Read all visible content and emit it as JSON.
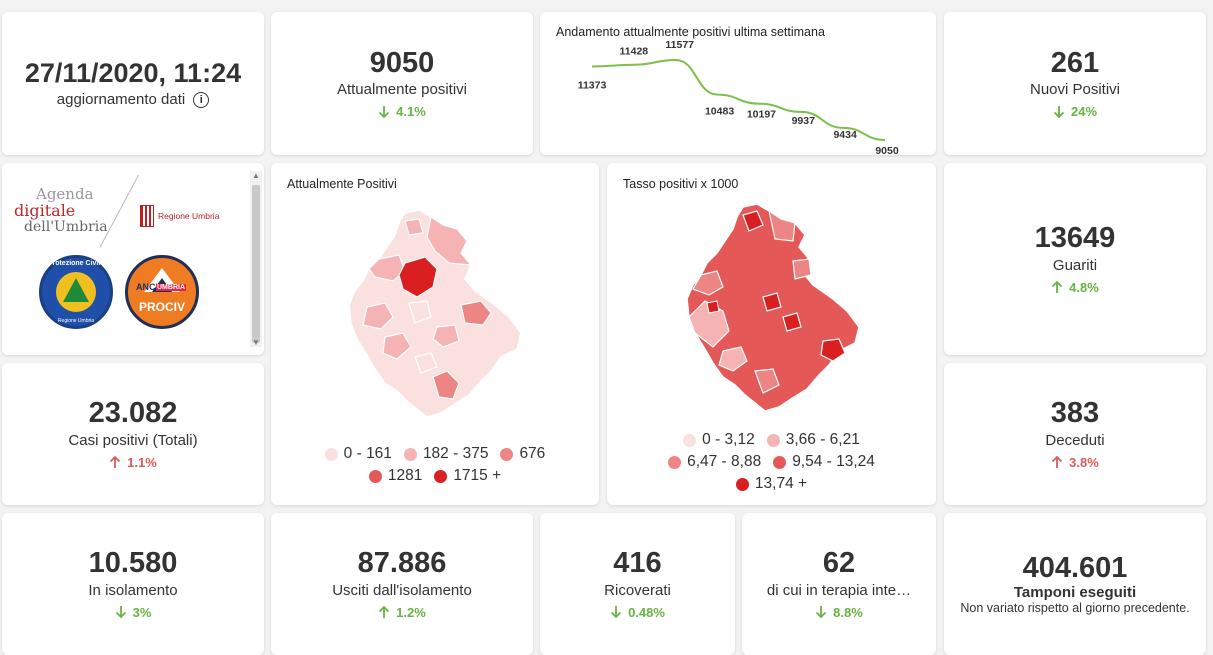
{
  "datetime": {
    "value": "27/11/2020, 11:24",
    "label": "aggiornamento dati",
    "icon": "info-icon"
  },
  "attualmente_positivi": {
    "value": "9050",
    "label": "Attualmente positivi",
    "trend": "4.1%",
    "direction": "down"
  },
  "trend_chart": {
    "title": "Andamento attualmente positivi ultima settimana",
    "chart_data": {
      "type": "line",
      "title": "Andamento attualmente positivi ultima settimana",
      "values": [
        11373,
        11428,
        11577,
        10483,
        10197,
        9937,
        9434,
        9050
      ],
      "labels": [
        "11373",
        "11428",
        "11577",
        "10483",
        "10197",
        "9937",
        "9434",
        "9050"
      ],
      "color": "#7cbf4a"
    }
  },
  "nuovi_positivi": {
    "value": "261",
    "label": "Nuovi Positivi",
    "trend": "24%",
    "direction": "down"
  },
  "logos": {
    "agenda_line1": "Agenda",
    "agenda_line2": "digitale",
    "agenda_line3": "dell'Umbria",
    "regione": "Regione Umbria",
    "protezione": "Protezione Civile",
    "protezione_sub": "Regione Umbria",
    "anci_line1": "ANCI",
    "anci_line2": "UMBRIA",
    "anci_line3": "PROCIV"
  },
  "map_positivi": {
    "title": "Attualmente Positivi",
    "legend": [
      {
        "label": "0 - 161",
        "color": "#fbe0e0"
      },
      {
        "label": "182 - 375",
        "color": "#f5b3b3"
      },
      {
        "label": "676",
        "color": "#ee8585"
      },
      {
        "label": "1281",
        "color": "#e45858"
      },
      {
        "label": "1715 +",
        "color": "#d91f1f"
      }
    ]
  },
  "map_tasso": {
    "title": "Tasso positivi x 1000",
    "legend": [
      {
        "label": "0 - 3,12",
        "color": "#fbe0e0"
      },
      {
        "label": "3,66 - 6,21",
        "color": "#f5b3b3"
      },
      {
        "label": "6,47 - 8,88",
        "color": "#ee8585"
      },
      {
        "label": "9,54 - 13,24",
        "color": "#e45858"
      },
      {
        "label": "13,74 +",
        "color": "#d91f1f"
      }
    ]
  },
  "guariti": {
    "value": "13649",
    "label": "Guariti",
    "trend": "4.8%",
    "direction": "up-green"
  },
  "casi_totali": {
    "value": "23.082",
    "label": "Casi positivi (Totali)",
    "trend": "1.1%",
    "direction": "up-red"
  },
  "deceduti": {
    "value": "383",
    "label": "Deceduti",
    "trend": "3.8%",
    "direction": "up-red"
  },
  "isolamento": {
    "value": "10.580",
    "label": "In isolamento",
    "trend": "3%",
    "direction": "down"
  },
  "usciti": {
    "value": "87.886",
    "label": "Usciti dall'isolamento",
    "trend": "1.2%",
    "direction": "up-green"
  },
  "ricoverati": {
    "value": "416",
    "label": "Ricoverati",
    "trend": "0.48%",
    "direction": "down"
  },
  "terapia": {
    "value": "62",
    "label": "di cui in terapia inte…",
    "trend": "8.8%",
    "direction": "down"
  },
  "tamponi": {
    "value": "404.601",
    "label": "Tamponi eseguiti",
    "note": "Non variato rispetto al giorno precedente."
  }
}
